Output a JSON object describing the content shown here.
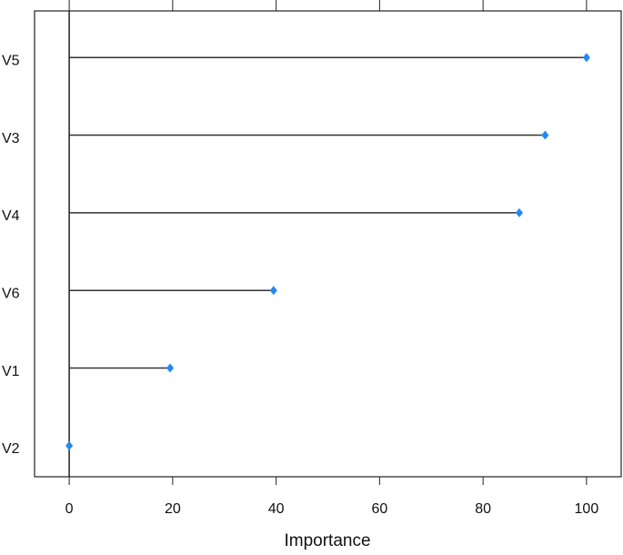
{
  "chart_data": {
    "type": "lollipop",
    "x_label": "Importance",
    "categories": [
      "V5",
      "V3",
      "V4",
      "V6",
      "V1",
      "V2"
    ],
    "values": [
      100,
      92,
      87,
      39.5,
      19.5,
      0
    ],
    "color": "#1e88ff",
    "xlim": [
      -6.7,
      106.7
    ],
    "xticks": [
      0,
      20,
      40,
      60,
      80,
      100
    ]
  }
}
